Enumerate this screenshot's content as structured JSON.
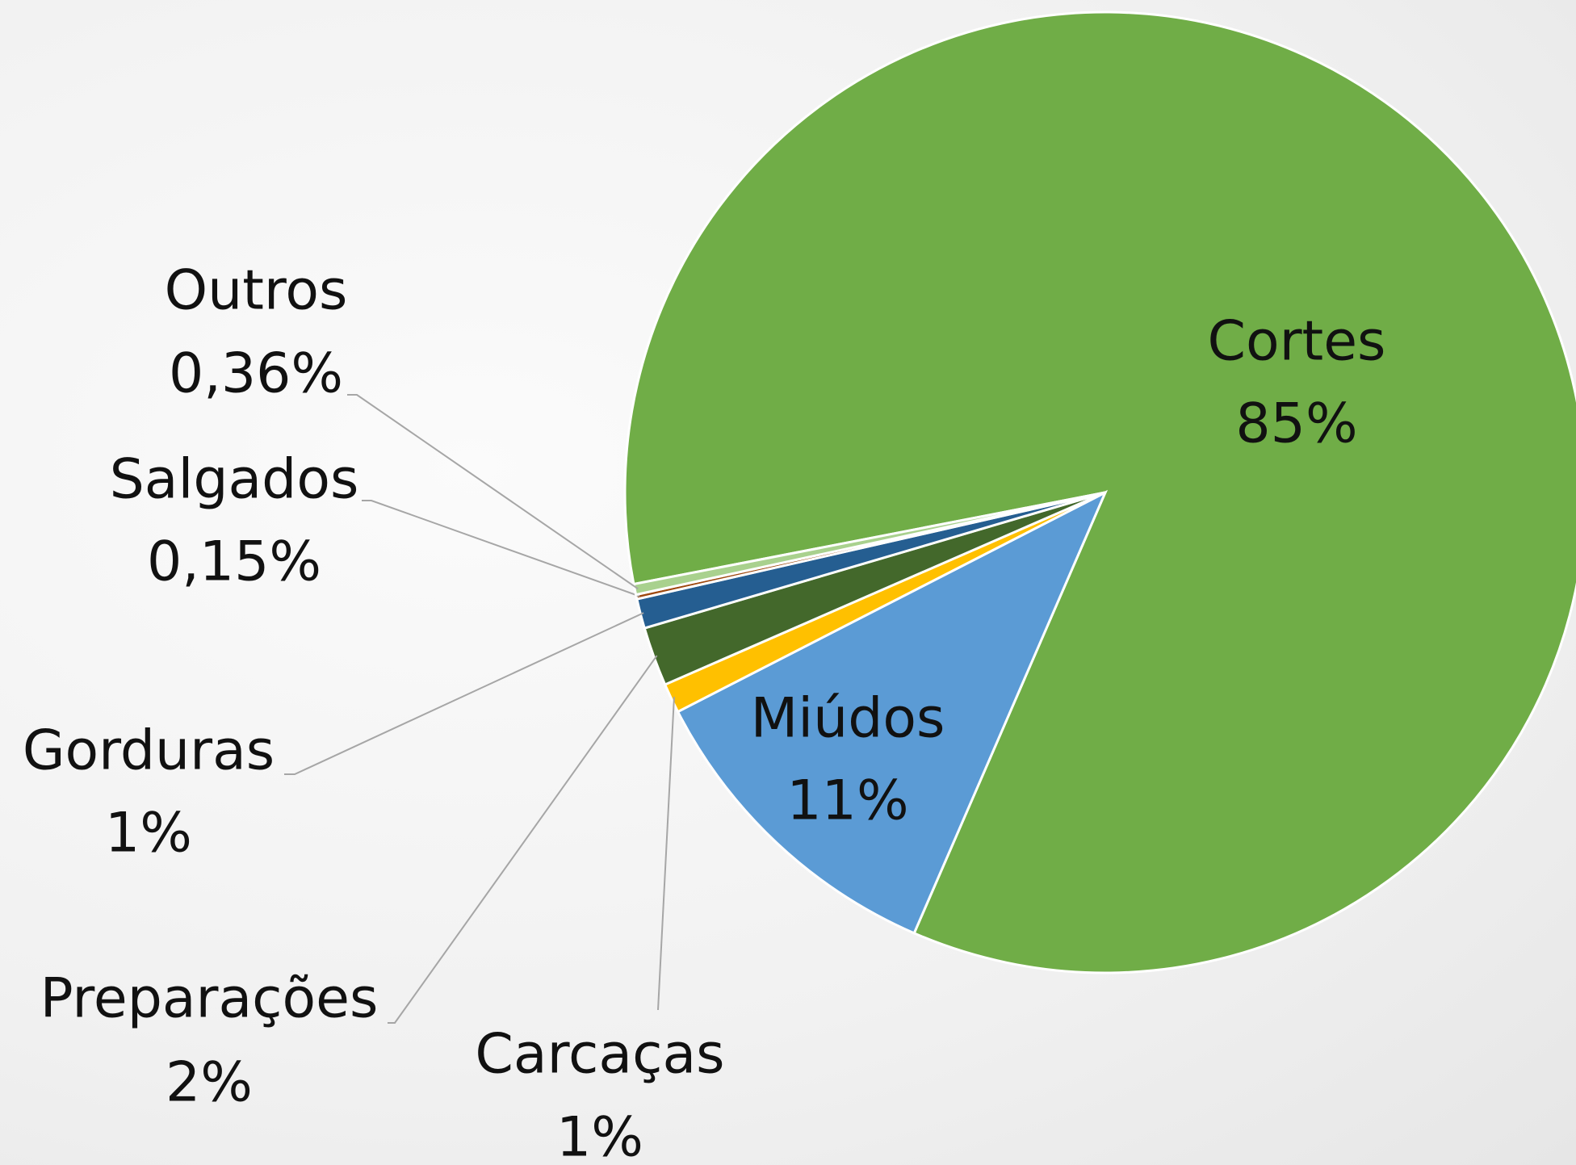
{
  "chart_data": {
    "type": "pie",
    "categories": [
      "Cortes",
      "Miúdos",
      "Carcaças",
      "Preparações",
      "Gorduras",
      "Salgados",
      "Outros"
    ],
    "values": [
      85,
      11,
      1,
      2,
      1,
      0.15,
      0.36
    ],
    "value_labels": [
      "85%",
      "11%",
      "1%",
      "2%",
      "1%",
      "0,15%",
      "0,36%"
    ],
    "colors": [
      "#70ad47",
      "#5b9bd5",
      "#ffc000",
      "#43682b",
      "#255e91",
      "#9e480e",
      "#a9d18e"
    ]
  }
}
